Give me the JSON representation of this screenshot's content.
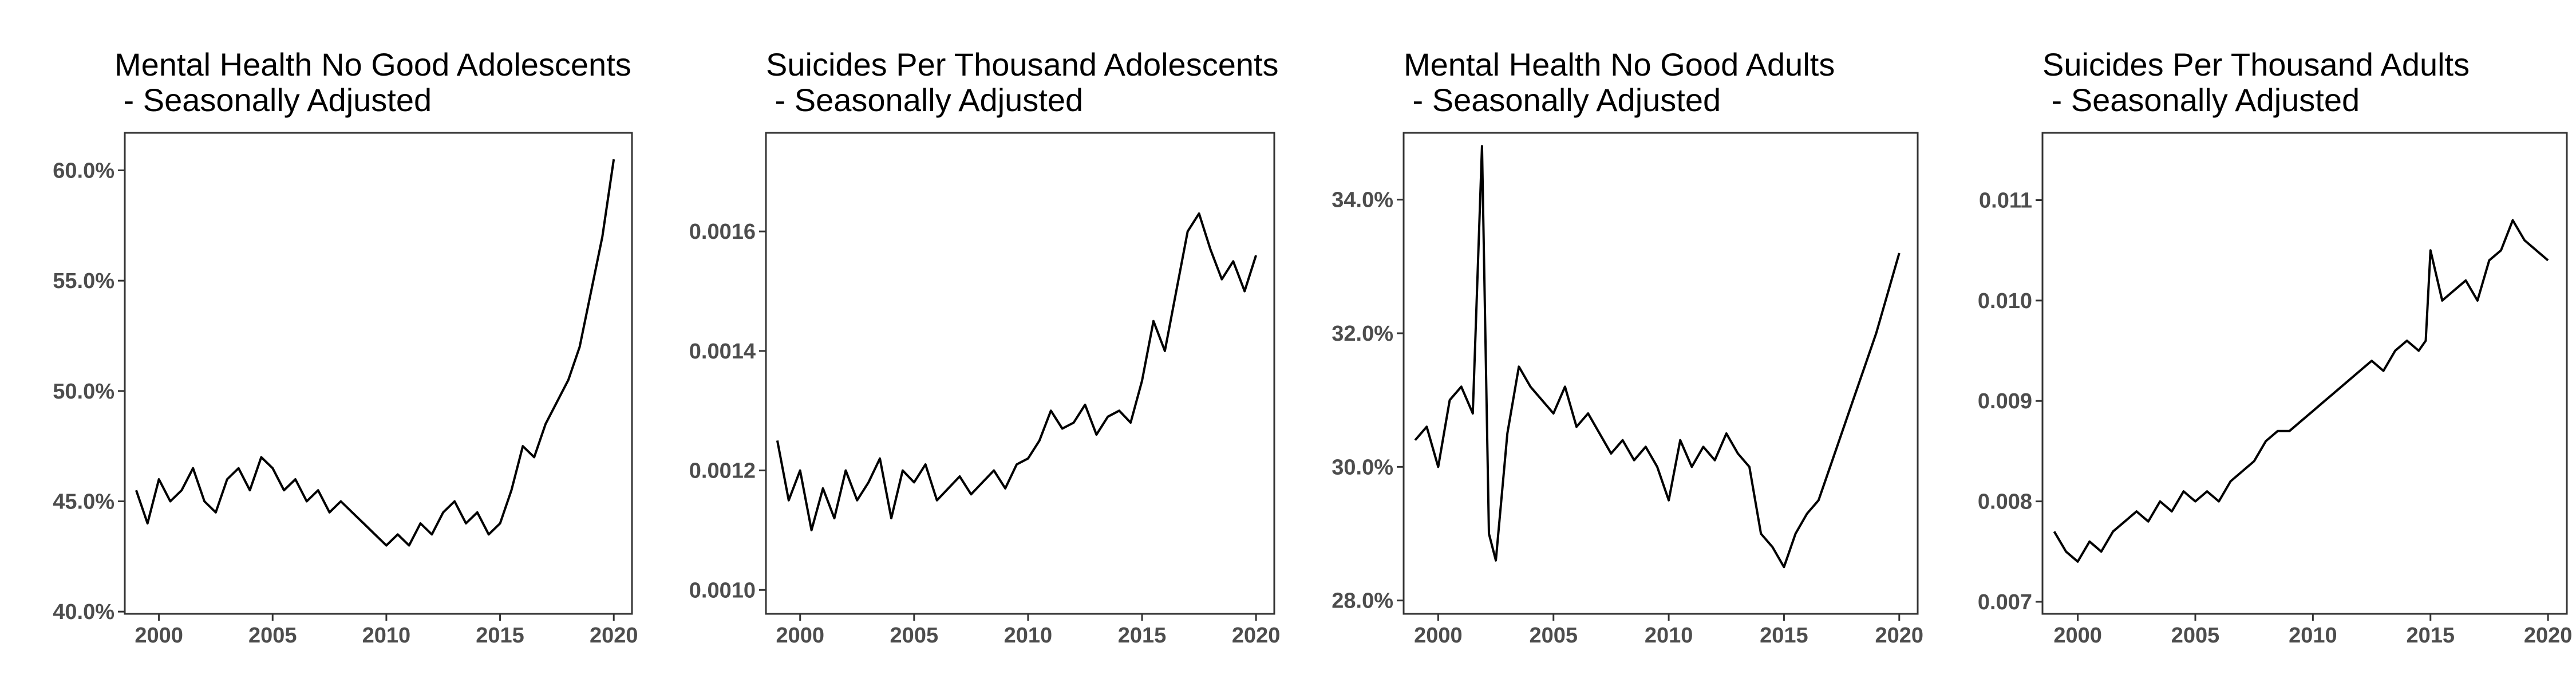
{
  "chart_data": [
    {
      "type": "line",
      "title_line1": "Mental Health No Good Adolescents",
      "title_line2": " - Seasonally Adjusted",
      "xlabel": "",
      "ylabel": "",
      "xlim": [
        1998.5,
        2020.8
      ],
      "ylim": [
        39.9,
        61.7
      ],
      "x_ticks": [
        2000,
        2005,
        2010,
        2015,
        2020
      ],
      "x_tick_labels": [
        "2000",
        "2005",
        "2010",
        "2015",
        "2020"
      ],
      "y_ticks": [
        40,
        45,
        50,
        55,
        60
      ],
      "y_tick_labels": [
        "40.0%",
        "45.0%",
        "50.0%",
        "55.0%",
        "60.0%"
      ],
      "grid": false,
      "series": [
        {
          "x": [
            1999.0,
            1999.5,
            2000.0,
            2000.5,
            2001.0,
            2001.5,
            2002.0,
            2002.5,
            2003.0,
            2003.5,
            2004.0,
            2004.5,
            2005.0,
            2005.5,
            2006.0,
            2006.5,
            2007.0,
            2007.5,
            2008.0,
            2008.5,
            2009.0,
            2009.5,
            2010.0,
            2010.5,
            2011.0,
            2011.5,
            2012.0,
            2012.5,
            2013.0,
            2013.5,
            2014.0,
            2014.5,
            2015.0,
            2015.5,
            2016.0,
            2016.5,
            2017.0,
            2017.5,
            2018.0,
            2018.5,
            2019.0,
            2019.5,
            2020.0
          ],
          "values": [
            45.5,
            44.0,
            46.0,
            45.0,
            45.5,
            46.5,
            45.0,
            44.5,
            46.0,
            46.5,
            45.5,
            47.0,
            46.5,
            45.5,
            46.0,
            45.0,
            45.5,
            44.5,
            45.0,
            44.5,
            44.0,
            43.5,
            43.0,
            43.5,
            43.0,
            44.0,
            43.5,
            44.5,
            45.0,
            44.0,
            44.5,
            43.5,
            44.0,
            45.5,
            47.5,
            47.0,
            48.5,
            49.5,
            50.5,
            52.0,
            54.5,
            57.0,
            60.5
          ]
        }
      ]
    },
    {
      "type": "line",
      "title_line1": "Suicides Per Thousand Adolescents",
      "title_line2": " - Seasonally Adjusted",
      "xlabel": "",
      "ylabel": "",
      "xlim": [
        1998.5,
        2020.8
      ],
      "ylim": [
        0.00096,
        0.001765
      ],
      "x_ticks": [
        2000,
        2005,
        2010,
        2015,
        2020
      ],
      "x_tick_labels": [
        "2000",
        "2005",
        "2010",
        "2015",
        "2020"
      ],
      "y_ticks": [
        0.001,
        0.0012,
        0.0014,
        0.0016
      ],
      "y_tick_labels": [
        "0.0010",
        "0.0012",
        "0.0014",
        "0.0016"
      ],
      "grid": false,
      "series": [
        {
          "x": [
            1999.0,
            1999.5,
            2000.0,
            2000.5,
            2001.0,
            2001.5,
            2002.0,
            2002.5,
            2003.0,
            2003.5,
            2004.0,
            2004.5,
            2005.0,
            2005.5,
            2006.0,
            2006.5,
            2007.0,
            2007.5,
            2008.0,
            2008.5,
            2009.0,
            2009.5,
            2010.0,
            2010.5,
            2011.0,
            2011.5,
            2012.0,
            2012.5,
            2013.0,
            2013.5,
            2014.0,
            2014.5,
            2015.0,
            2015.5,
            2016.0,
            2016.5,
            2017.0,
            2017.5,
            2018.0,
            2018.5,
            2019.0,
            2019.5,
            2020.0
          ],
          "values": [
            0.00125,
            0.00115,
            0.0012,
            0.0011,
            0.00117,
            0.00112,
            0.0012,
            0.00115,
            0.00118,
            0.00122,
            0.00112,
            0.0012,
            0.00118,
            0.00121,
            0.00115,
            0.00117,
            0.00119,
            0.00116,
            0.00118,
            0.0012,
            0.00117,
            0.00121,
            0.00122,
            0.00125,
            0.0013,
            0.00127,
            0.00128,
            0.00131,
            0.00126,
            0.00129,
            0.0013,
            0.00128,
            0.00135,
            0.00145,
            0.0014,
            0.0015,
            0.0016,
            0.00163,
            0.00157,
            0.00152,
            0.00155,
            0.0015,
            0.00156
          ]
        }
      ]
    },
    {
      "type": "line",
      "title_line1": "Mental Health No Good Adults",
      "title_line2": " - Seasonally Adjusted",
      "xlabel": "",
      "ylabel": "",
      "xlim": [
        1998.5,
        2020.8
      ],
      "ylim": [
        27.8,
        35.0
      ],
      "x_ticks": [
        2000,
        2005,
        2010,
        2015,
        2020
      ],
      "x_tick_labels": [
        "2000",
        "2005",
        "2010",
        "2015",
        "2020"
      ],
      "y_ticks": [
        28,
        30,
        32,
        34
      ],
      "y_tick_labels": [
        "28.0%",
        "30.0%",
        "32.0%",
        "34.0%"
      ],
      "grid": false,
      "series": [
        {
          "x": [
            1999.0,
            1999.5,
            2000.0,
            2000.5,
            2001.0,
            2001.5,
            2001.9,
            2002.2,
            2002.5,
            2003.0,
            2003.5,
            2004.0,
            2004.5,
            2005.0,
            2005.5,
            2006.0,
            2006.5,
            2007.0,
            2007.5,
            2008.0,
            2008.5,
            2009.0,
            2009.5,
            2010.0,
            2010.5,
            2011.0,
            2011.5,
            2012.0,
            2012.5,
            2013.0,
            2013.5,
            2014.0,
            2014.5,
            2015.0,
            2015.5,
            2016.0,
            2016.5,
            2017.0,
            2017.5,
            2018.0,
            2018.5,
            2019.0,
            2019.5,
            2020.0
          ],
          "values": [
            30.4,
            30.6,
            30.0,
            31.0,
            31.2,
            30.8,
            34.8,
            29.0,
            28.6,
            30.5,
            31.5,
            31.2,
            31.0,
            30.8,
            31.2,
            30.6,
            30.8,
            30.5,
            30.2,
            30.4,
            30.1,
            30.3,
            30.0,
            29.5,
            30.4,
            30.0,
            30.3,
            30.1,
            30.5,
            30.2,
            30.0,
            29.0,
            28.8,
            28.5,
            29.0,
            29.3,
            29.5,
            30.0,
            30.5,
            31.0,
            31.5,
            32.0,
            32.6,
            33.2
          ]
        }
      ]
    },
    {
      "type": "line",
      "title_line1": "Suicides Per Thousand Adults",
      "title_line2": " - Seasonally Adjusted",
      "xlabel": "",
      "ylabel": "",
      "xlim": [
        1998.5,
        2020.8
      ],
      "ylim": [
        0.00688,
        0.01167
      ],
      "x_ticks": [
        2000,
        2005,
        2010,
        2015,
        2020
      ],
      "x_tick_labels": [
        "2000",
        "2005",
        "2010",
        "2015",
        "2020"
      ],
      "y_ticks": [
        0.007,
        0.008,
        0.009,
        0.01,
        0.011
      ],
      "y_tick_labels": [
        "0.007",
        "0.008",
        "0.009",
        "0.010",
        "0.011"
      ],
      "grid": false,
      "series": [
        {
          "x": [
            1999.0,
            1999.5,
            2000.0,
            2000.5,
            2001.0,
            2001.5,
            2002.0,
            2002.5,
            2003.0,
            2003.5,
            2004.0,
            2004.5,
            2005.0,
            2005.5,
            2006.0,
            2006.5,
            2007.0,
            2007.5,
            2008.0,
            2008.5,
            2009.0,
            2009.5,
            2010.0,
            2010.5,
            2011.0,
            2011.5,
            2012.0,
            2012.5,
            2013.0,
            2013.5,
            2014.0,
            2014.5,
            2014.8,
            2015.0,
            2015.5,
            2016.0,
            2016.5,
            2017.0,
            2017.5,
            2018.0,
            2018.5,
            2019.0,
            2019.5,
            2020.0
          ],
          "values": [
            0.0077,
            0.0075,
            0.0074,
            0.0076,
            0.0075,
            0.0077,
            0.0078,
            0.0079,
            0.0078,
            0.008,
            0.0079,
            0.0081,
            0.008,
            0.0081,
            0.008,
            0.0082,
            0.0083,
            0.0084,
            0.0086,
            0.0087,
            0.0087,
            0.0088,
            0.0089,
            0.009,
            0.0091,
            0.0092,
            0.0093,
            0.0094,
            0.0093,
            0.0095,
            0.0096,
            0.0095,
            0.0096,
            0.0105,
            0.01,
            0.0101,
            0.0102,
            0.01,
            0.0104,
            0.0105,
            0.0108,
            0.0106,
            0.0105,
            0.0104
          ]
        }
      ]
    }
  ]
}
